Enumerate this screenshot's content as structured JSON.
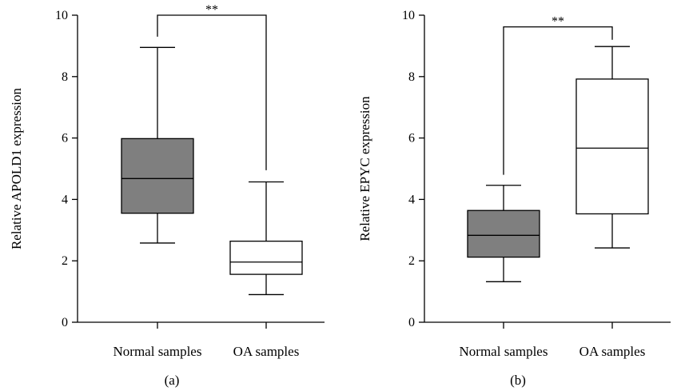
{
  "chart_data": [
    {
      "type": "box",
      "panel_label": "(a)",
      "ylabel": "Relative APOLD1 expression",
      "ylim": [
        0,
        10
      ],
      "yticks": [
        0,
        2,
        4,
        6,
        8,
        10
      ],
      "categories": [
        "Normal samples",
        "OA samples"
      ],
      "boxes": [
        {
          "category": "Normal samples",
          "min": 2.58,
          "q1": 3.55,
          "median": 4.68,
          "q3": 5.98,
          "max": 8.95,
          "fill": "#7f7f7f"
        },
        {
          "category": "OA samples",
          "min": 0.9,
          "q1": 1.56,
          "median": 1.96,
          "q3": 2.64,
          "max": 4.57,
          "fill": "#ffffff"
        }
      ],
      "significance": {
        "between": [
          "Normal samples",
          "OA samples"
        ],
        "label": "**",
        "bracket_y": 10.0,
        "left_drop_to": 9.3,
        "right_drop_to": 4.95
      }
    },
    {
      "type": "box",
      "panel_label": "(b)",
      "ylabel": "Relative EPYC expression",
      "ylim": [
        0,
        10
      ],
      "yticks": [
        0,
        2,
        4,
        6,
        8,
        10
      ],
      "categories": [
        "Normal samples",
        "OA samples"
      ],
      "boxes": [
        {
          "category": "Normal samples",
          "min": 1.32,
          "q1": 2.12,
          "median": 2.83,
          "q3": 3.64,
          "max": 4.46,
          "fill": "#7f7f7f"
        },
        {
          "category": "OA samples",
          "min": 2.42,
          "q1": 3.53,
          "median": 5.67,
          "q3": 7.92,
          "max": 8.98,
          "fill": "#ffffff"
        }
      ],
      "significance": {
        "between": [
          "Normal samples",
          "OA samples"
        ],
        "label": "**",
        "bracket_y": 9.62,
        "left_drop_to": 4.8,
        "right_drop_to": 9.2
      }
    }
  ]
}
